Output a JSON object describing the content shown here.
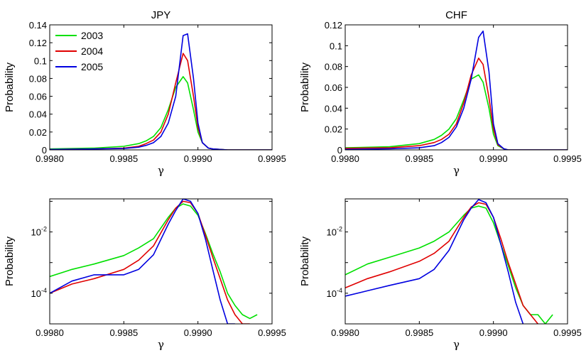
{
  "colors": {
    "2003": "#00e000",
    "2004": "#e00000",
    "2005": "#0000e0"
  },
  "chart_data": [
    {
      "type": "line",
      "title": "JPY",
      "xlabel": "γ",
      "ylabel": "Probability",
      "xlim": [
        0.998,
        0.9995
      ],
      "ylim": [
        0,
        0.14
      ],
      "yscale": "linear",
      "xticks": [
        "0.9980",
        "0.9985",
        "0.9990",
        "0.9995"
      ],
      "yticks": [
        "0",
        "0.02",
        "0.04",
        "0.06",
        "0.08",
        "0.1",
        "0.12",
        "0.14"
      ],
      "legend": {
        "position": "top-left",
        "entries": [
          "2003",
          "2004",
          "2005"
        ]
      },
      "series": [
        {
          "name": "2003",
          "color": "#00e000",
          "x": [
            0.998,
            0.9983,
            0.9985,
            0.9986,
            0.99865,
            0.9987,
            0.99875,
            0.9988,
            0.99885,
            0.9989,
            0.99893,
            0.99897,
            0.999,
            0.99903,
            0.99907,
            0.9991,
            0.9992,
            0.9995
          ],
          "y": [
            0.001,
            0.002,
            0.004,
            0.007,
            0.01,
            0.015,
            0.025,
            0.045,
            0.07,
            0.082,
            0.075,
            0.045,
            0.02,
            0.008,
            0.002,
            0.001,
            0,
            0
          ]
        },
        {
          "name": "2004",
          "color": "#e00000",
          "x": [
            0.998,
            0.9983,
            0.9985,
            0.9986,
            0.99865,
            0.9987,
            0.99875,
            0.9988,
            0.99885,
            0.9989,
            0.99893,
            0.99897,
            0.999,
            0.99903,
            0.99907,
            0.9991,
            0.9992,
            0.9995
          ],
          "y": [
            0.0005,
            0.001,
            0.002,
            0.004,
            0.007,
            0.011,
            0.02,
            0.04,
            0.075,
            0.108,
            0.1,
            0.06,
            0.025,
            0.008,
            0.002,
            0.001,
            0,
            0
          ]
        },
        {
          "name": "2005",
          "color": "#0000e0",
          "x": [
            0.998,
            0.9983,
            0.9985,
            0.9986,
            0.99865,
            0.9987,
            0.99875,
            0.9988,
            0.99885,
            0.9989,
            0.99893,
            0.99897,
            0.999,
            0.99903,
            0.99907,
            0.9991,
            0.9992,
            0.9995
          ],
          "y": [
            0.0005,
            0.001,
            0.0015,
            0.003,
            0.005,
            0.008,
            0.015,
            0.03,
            0.06,
            0.128,
            0.13,
            0.08,
            0.03,
            0.008,
            0.002,
            0.001,
            0,
            0
          ]
        }
      ]
    },
    {
      "type": "line",
      "title": "CHF",
      "xlabel": "γ",
      "ylabel": "Probability",
      "xlim": [
        0.998,
        0.9995
      ],
      "ylim": [
        0,
        0.12
      ],
      "yscale": "linear",
      "xticks": [
        "0.9980",
        "0.9985",
        "0.9990",
        "0.9995"
      ],
      "yticks": [
        "0",
        "0.02",
        "0.04",
        "0.06",
        "0.08",
        "0.1",
        "0.12"
      ],
      "series": [
        {
          "name": "2003",
          "color": "#00e000",
          "x": [
            0.998,
            0.9983,
            0.9985,
            0.9986,
            0.99865,
            0.9987,
            0.99875,
            0.9988,
            0.99885,
            0.9989,
            0.99893,
            0.99897,
            0.999,
            0.99903,
            0.99907,
            0.9991,
            0.9992,
            0.9995
          ],
          "y": [
            0.002,
            0.003,
            0.006,
            0.01,
            0.014,
            0.02,
            0.03,
            0.048,
            0.068,
            0.072,
            0.065,
            0.04,
            0.015,
            0.004,
            0.001,
            0,
            0,
            0
          ]
        },
        {
          "name": "2004",
          "color": "#e00000",
          "x": [
            0.998,
            0.9983,
            0.9985,
            0.9986,
            0.99865,
            0.9987,
            0.99875,
            0.9988,
            0.99885,
            0.9989,
            0.99893,
            0.99897,
            0.999,
            0.99903,
            0.99907,
            0.9991,
            0.9992,
            0.9995
          ],
          "y": [
            0.0015,
            0.002,
            0.004,
            0.007,
            0.01,
            0.015,
            0.025,
            0.045,
            0.072,
            0.088,
            0.082,
            0.05,
            0.02,
            0.005,
            0.001,
            0,
            0,
            0
          ]
        },
        {
          "name": "2005",
          "color": "#0000e0",
          "x": [
            0.998,
            0.9983,
            0.9985,
            0.9986,
            0.99865,
            0.9987,
            0.99875,
            0.9988,
            0.99885,
            0.9989,
            0.99893,
            0.99897,
            0.999,
            0.99903,
            0.99907,
            0.9991,
            0.9992,
            0.9995
          ],
          "y": [
            0.0005,
            0.001,
            0.002,
            0.004,
            0.007,
            0.012,
            0.022,
            0.04,
            0.068,
            0.108,
            0.114,
            0.075,
            0.025,
            0.006,
            0.001,
            0,
            0,
            0
          ]
        }
      ]
    },
    {
      "type": "line",
      "title": "",
      "xlabel": "γ",
      "ylabel": "Probability",
      "xlim": [
        0.998,
        0.9995
      ],
      "ylim": [
        1e-05,
        0.12
      ],
      "yscale": "log",
      "xticks": [
        "0.9980",
        "0.9985",
        "0.9990",
        "0.9995"
      ],
      "yticks": [
        {
          "base": "10",
          "exp": "-2",
          "value": 0.01
        },
        {
          "base": "10",
          "exp": "-4",
          "value": 0.0001
        }
      ],
      "series": [
        {
          "name": "2003",
          "color": "#00e000",
          "x": [
            0.998,
            0.99815,
            0.9983,
            0.9985,
            0.9986,
            0.9987,
            0.9988,
            0.99885,
            0.9989,
            0.99895,
            0.999,
            0.99905,
            0.9991,
            0.99915,
            0.9992,
            0.99925,
            0.9993,
            0.99935,
            0.9994
          ],
          "y": [
            0.00035,
            0.0006,
            0.0009,
            0.0017,
            0.003,
            0.006,
            0.03,
            0.06,
            0.082,
            0.07,
            0.035,
            0.009,
            0.002,
            0.0005,
            0.0001,
            4e-05,
            2e-05,
            1.5e-05,
            2e-05
          ]
        },
        {
          "name": "2004",
          "color": "#e00000",
          "x": [
            0.998,
            0.99815,
            0.9983,
            0.9985,
            0.9986,
            0.9987,
            0.9988,
            0.99885,
            0.9989,
            0.99895,
            0.999,
            0.99905,
            0.9991,
            0.99915,
            0.9992,
            0.99925,
            0.9993,
            0.99935
          ],
          "y": [
            0.0001,
            0.0002,
            0.0003,
            0.0006,
            0.0012,
            0.0035,
            0.025,
            0.06,
            0.1,
            0.09,
            0.04,
            0.008,
            0.0015,
            0.0003,
            6e-05,
            2e-05,
            1e-05,
            1e-05
          ]
        },
        {
          "name": "2005",
          "color": "#0000e0",
          "x": [
            0.998,
            0.99815,
            0.9983,
            0.9985,
            0.9986,
            0.9987,
            0.9988,
            0.99885,
            0.9989,
            0.99895,
            0.999,
            0.99905,
            0.9991,
            0.99915,
            0.9992,
            0.99925
          ],
          "y": [
            0.0001,
            0.00025,
            0.0004,
            0.0004,
            0.0006,
            0.0018,
            0.018,
            0.05,
            0.12,
            0.1,
            0.04,
            0.006,
            0.0006,
            6e-05,
            1e-05,
            1e-05
          ]
        }
      ]
    },
    {
      "type": "line",
      "title": "",
      "xlabel": "γ",
      "ylabel": "Probability",
      "xlim": [
        0.998,
        0.9995
      ],
      "ylim": [
        1e-05,
        0.12
      ],
      "yscale": "log",
      "xticks": [
        "0.9980",
        "0.9985",
        "0.9990",
        "0.9995"
      ],
      "yticks": [
        {
          "base": "10",
          "exp": "-2",
          "value": 0.01
        },
        {
          "base": "10",
          "exp": "-4",
          "value": 0.0001
        }
      ],
      "series": [
        {
          "name": "2003",
          "color": "#00e000",
          "x": [
            0.998,
            0.99815,
            0.9983,
            0.9985,
            0.9986,
            0.9987,
            0.9988,
            0.99885,
            0.9989,
            0.99895,
            0.999,
            0.99905,
            0.9991,
            0.99915,
            0.9992,
            0.99925,
            0.9993,
            0.99935,
            0.9994
          ],
          "y": [
            0.0004,
            0.0009,
            0.0015,
            0.003,
            0.005,
            0.01,
            0.035,
            0.06,
            0.07,
            0.06,
            0.02,
            0.004,
            0.0008,
            0.00015,
            4e-05,
            2e-05,
            2e-05,
            1e-05,
            2e-05
          ]
        },
        {
          "name": "2004",
          "color": "#e00000",
          "x": [
            0.998,
            0.99815,
            0.9983,
            0.9985,
            0.9986,
            0.9987,
            0.9988,
            0.99885,
            0.9989,
            0.99895,
            0.999,
            0.99905,
            0.9991,
            0.99915,
            0.9992,
            0.99925,
            0.9993
          ],
          "y": [
            0.00015,
            0.0003,
            0.0005,
            0.0011,
            0.002,
            0.005,
            0.03,
            0.065,
            0.09,
            0.08,
            0.03,
            0.006,
            0.001,
            0.0002,
            4e-05,
            2e-05,
            1e-05
          ]
        },
        {
          "name": "2005",
          "color": "#0000e0",
          "x": [
            0.998,
            0.99815,
            0.9983,
            0.9985,
            0.9986,
            0.9987,
            0.9988,
            0.99885,
            0.9989,
            0.99895,
            0.999,
            0.99905,
            0.9991,
            0.99915,
            0.9992
          ],
          "y": [
            8e-05,
            0.00012,
            0.00018,
            0.0003,
            0.0006,
            0.0025,
            0.025,
            0.06,
            0.114,
            0.09,
            0.03,
            0.004,
            0.0005,
            5e-05,
            1e-05
          ]
        }
      ]
    }
  ]
}
